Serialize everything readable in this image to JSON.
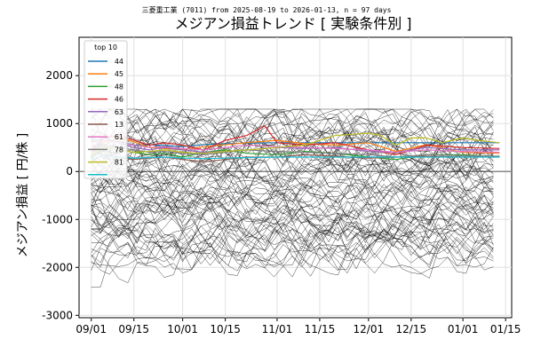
{
  "chart_data": {
    "type": "line",
    "suptitle": "三菱重工業 (7011) from 2025-08-19 to 2026-01-13, n = 97 days",
    "title": "メジアン損益トレンド [ 実験条件別 ]",
    "xlabel": "",
    "ylabel": "メジアン損益 [ 円/株 ]",
    "ylim": [
      -3050,
      2800
    ],
    "xlim": [
      "2025-08-28",
      "2026-01-17"
    ],
    "x_ticks": [
      "09/01",
      "09/15",
      "10/01",
      "10/15",
      "11/01",
      "11/15",
      "12/01",
      "12/15",
      "01/01",
      "01/15"
    ],
    "x_tick_dates": [
      "2025-09-01",
      "2025-09-15",
      "2025-10-01",
      "2025-10-15",
      "2025-11-01",
      "2025-11-15",
      "2025-12-01",
      "2025-12-15",
      "2026-01-01",
      "2026-01-15"
    ],
    "y_ticks": [
      2000,
      1000,
      0,
      -1000,
      -2000,
      -3000
    ],
    "grid": true,
    "legend_title": "top 10",
    "legend_position": "upper-left",
    "background_series": "approximately 80 thin black lines ranging from about -2800 to about 1300",
    "series": [
      {
        "name": "44",
        "color": "#1f77b4",
        "dates": [
          "2025-09-01",
          "2025-09-05",
          "2025-09-10",
          "2025-09-15",
          "2025-09-20",
          "2025-09-25",
          "2025-10-01",
          "2025-10-08",
          "2025-10-15",
          "2025-10-22",
          "2025-11-01",
          "2025-11-10",
          "2025-11-20",
          "2025-12-01",
          "2025-12-10",
          "2025-12-20",
          "2026-01-01",
          "2026-01-13"
        ],
        "values": [
          400,
          650,
          620,
          550,
          560,
          540,
          520,
          560,
          580,
          590,
          600,
          600,
          600,
          600,
          600,
          600,
          600,
          600
        ]
      },
      {
        "name": "45",
        "color": "#ff7f0e",
        "dates": [
          "2025-09-01",
          "2025-09-05",
          "2025-09-10",
          "2025-09-15",
          "2025-09-20",
          "2025-09-25",
          "2025-10-01",
          "2025-10-08",
          "2025-10-15",
          "2025-10-22",
          "2025-11-01",
          "2025-11-10",
          "2025-11-20",
          "2025-12-01",
          "2025-12-10",
          "2025-12-20",
          "2026-01-01",
          "2026-01-13"
        ],
        "values": [
          350,
          600,
          700,
          620,
          500,
          480,
          460,
          520,
          560,
          600,
          650,
          580,
          550,
          600,
          420,
          560,
          400,
          380
        ]
      },
      {
        "name": "48",
        "color": "#2ca02c",
        "dates": [
          "2025-09-01",
          "2025-09-05",
          "2025-09-10",
          "2025-09-15",
          "2025-09-20",
          "2025-09-25",
          "2025-10-01",
          "2025-10-08",
          "2025-10-15",
          "2025-10-22",
          "2025-11-01",
          "2025-11-10",
          "2025-11-20",
          "2025-12-01",
          "2025-12-10",
          "2025-12-20",
          "2026-01-01",
          "2026-01-13"
        ],
        "values": [
          300,
          500,
          450,
          400,
          350,
          380,
          300,
          400,
          450,
          380,
          350,
          420,
          380,
          300,
          250,
          350,
          350,
          300
        ]
      },
      {
        "name": "46",
        "color": "#d62728",
        "dates": [
          "2025-09-01",
          "2025-09-05",
          "2025-09-10",
          "2025-09-15",
          "2025-09-20",
          "2025-09-25",
          "2025-10-01",
          "2025-10-08",
          "2025-10-15",
          "2025-10-22",
          "2025-10-28",
          "2025-11-01",
          "2025-11-10",
          "2025-11-20",
          "2025-12-01",
          "2025-12-10",
          "2025-12-20",
          "2026-01-01",
          "2026-01-13"
        ],
        "values": [
          450,
          700,
          750,
          650,
          550,
          600,
          550,
          450,
          650,
          750,
          950,
          600,
          550,
          600,
          450,
          350,
          550,
          500,
          480
        ]
      },
      {
        "name": "63",
        "color": "#9467bd",
        "dates": [
          "2025-09-01",
          "2025-09-05",
          "2025-09-10",
          "2025-09-15",
          "2025-09-20",
          "2025-09-25",
          "2025-10-01",
          "2025-10-08",
          "2025-10-15",
          "2025-10-22",
          "2025-11-01",
          "2025-11-10",
          "2025-11-20",
          "2025-12-01",
          "2025-12-10",
          "2025-12-20",
          "2026-01-01",
          "2026-01-13"
        ],
        "values": [
          600,
          700,
          600,
          500,
          450,
          500,
          450,
          400,
          420,
          450,
          500,
          480,
          500,
          420,
          400,
          500,
          450,
          450
        ]
      },
      {
        "name": "13",
        "color": "#8c564b",
        "dates": [
          "2025-09-01",
          "2025-09-05",
          "2025-09-10",
          "2025-09-15",
          "2025-09-20",
          "2025-09-25",
          "2025-10-01",
          "2025-10-08",
          "2025-10-15",
          "2025-10-22",
          "2025-11-01",
          "2025-11-10",
          "2025-11-20",
          "2025-12-01",
          "2025-12-10",
          "2025-12-20",
          "2026-01-01",
          "2026-01-13"
        ],
        "values": [
          200,
          350,
          300,
          250,
          280,
          300,
          250,
          200,
          250,
          300,
          300,
          350,
          320,
          280,
          300,
          320,
          300,
          320
        ]
      },
      {
        "name": "61",
        "color": "#e377c2",
        "dates": [
          "2025-09-01",
          "2025-09-05",
          "2025-09-10",
          "2025-09-15",
          "2025-09-20",
          "2025-09-25",
          "2025-10-01",
          "2025-10-08",
          "2025-10-15",
          "2025-10-22",
          "2025-11-01",
          "2025-11-10",
          "2025-11-20",
          "2025-12-01",
          "2025-12-10",
          "2025-12-20",
          "2026-01-01",
          "2026-01-13"
        ],
        "values": [
          500,
          650,
          600,
          550,
          500,
          520,
          480,
          450,
          500,
          550,
          520,
          500,
          480,
          450,
          400,
          450,
          420,
          400
        ]
      },
      {
        "name": "78",
        "color": "#7f7f7f",
        "dates": [
          "2025-09-01",
          "2025-09-05",
          "2025-09-10",
          "2025-09-15",
          "2025-09-20",
          "2025-09-25",
          "2025-10-01",
          "2025-10-08",
          "2025-10-15",
          "2025-10-22",
          "2025-11-01",
          "2025-11-10",
          "2025-11-20",
          "2025-12-01",
          "2025-12-10",
          "2025-12-20",
          "2026-01-01",
          "2026-01-13"
        ],
        "values": [
          400,
          550,
          500,
          450,
          400,
          420,
          380,
          350,
          400,
          450,
          420,
          400,
          380,
          350,
          300,
          350,
          330,
          320
        ]
      },
      {
        "name": "81",
        "color": "#bcbd22",
        "dates": [
          "2025-09-01",
          "2025-09-05",
          "2025-09-10",
          "2025-09-15",
          "2025-09-20",
          "2025-09-25",
          "2025-10-01",
          "2025-10-08",
          "2025-10-15",
          "2025-10-22",
          "2025-11-01",
          "2025-11-10",
          "2025-11-20",
          "2025-12-01",
          "2025-12-05",
          "2025-12-10",
          "2025-12-15",
          "2025-12-20",
          "2025-12-25",
          "2026-01-01",
          "2026-01-06",
          "2026-01-13"
        ],
        "values": [
          350,
          500,
          450,
          400,
          420,
          450,
          400,
          380,
          420,
          450,
          500,
          550,
          750,
          800,
          750,
          550,
          700,
          700,
          600,
          700,
          650,
          600
        ]
      },
      {
        "name": "",
        "color": "#17becf",
        "dates": [
          "2025-09-01",
          "2025-09-05",
          "2025-09-10",
          "2025-09-15",
          "2025-09-20",
          "2025-09-25",
          "2025-10-01",
          "2025-10-08",
          "2025-10-15",
          "2025-10-22",
          "2025-11-01",
          "2025-11-10",
          "2025-11-20",
          "2025-12-01",
          "2025-12-10",
          "2025-12-20",
          "2026-01-01",
          "2026-01-13"
        ],
        "values": [
          250,
          330,
          300,
          280,
          290,
          300,
          280,
          270,
          280,
          290,
          300,
          300,
          300,
          300,
          300,
          300,
          300,
          300
        ]
      }
    ]
  }
}
